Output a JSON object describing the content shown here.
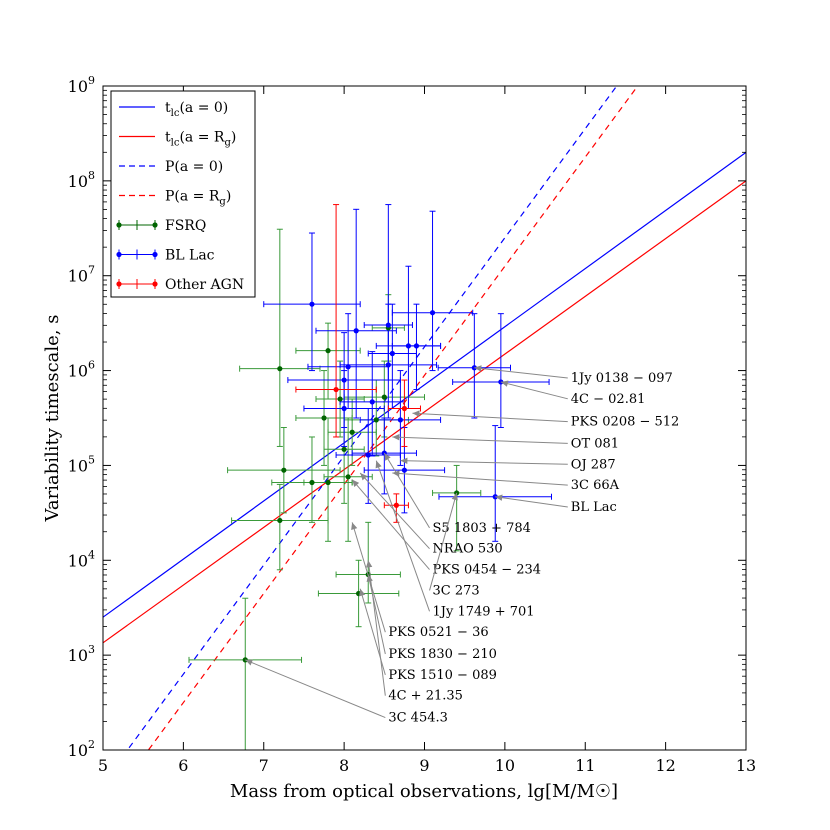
{
  "chart_data": {
    "type": "scatter",
    "title": "",
    "xlabel": "Mass from optical observations, lg[M/M☉]",
    "ylabel": "Variability timescale, s",
    "xlim": [
      5,
      13
    ],
    "ylim_log10": [
      2,
      9
    ],
    "yscale": "log",
    "grid": false,
    "legend_position": "top-left",
    "x_ticks": [
      "5",
      "6",
      "7",
      "8",
      "9",
      "10",
      "11",
      "12",
      "13"
    ],
    "y_ticks": [
      {
        "base": "10",
        "exp": "2"
      },
      {
        "base": "10",
        "exp": "3"
      },
      {
        "base": "10",
        "exp": "4"
      },
      {
        "base": "10",
        "exp": "5"
      },
      {
        "base": "10",
        "exp": "6"
      },
      {
        "base": "10",
        "exp": "7"
      },
      {
        "base": "10",
        "exp": "8"
      },
      {
        "base": "10",
        "exp": "9"
      }
    ],
    "lines": [
      {
        "name": "t_lc(a = 0)",
        "color": "#0000ff",
        "style": "solid",
        "p1": [
          5,
          3.4
        ],
        "p2": [
          13,
          8.3
        ]
      },
      {
        "name": "t_lc(a = R_g)",
        "color": "#ff0000",
        "style": "solid",
        "p1": [
          5,
          3.13
        ],
        "p2": [
          13,
          8.0
        ]
      },
      {
        "name": "P(a = 0)",
        "color": "#0000ff",
        "style": "dashed",
        "p1": [
          5,
          1.65
        ],
        "p2": [
          13,
          10.85
        ]
      },
      {
        "name": "P(a = R_g)",
        "color": "#ff0000",
        "style": "dashed",
        "p1": [
          5,
          1.35
        ],
        "p2": [
          13,
          10.55
        ]
      }
    ],
    "legend": [
      {
        "main": "t",
        "sub": "lc",
        "rest": "(a = 0)",
        "kind": "line",
        "color": "#0000ff",
        "dash": false
      },
      {
        "main": "t",
        "sub": "lc",
        "rest": "(a = R",
        "sub2": "g",
        "tail": ")",
        "kind": "line",
        "color": "#ff0000",
        "dash": false
      },
      {
        "main": "P(a = 0)",
        "kind": "line",
        "color": "#0000ff",
        "dash": true
      },
      {
        "main": "P(a = R",
        "sub2": "g",
        "tail": ")",
        "kind": "line",
        "color": "#ff0000",
        "dash": true
      },
      {
        "main": "FSRQ",
        "kind": "errbar",
        "color": "#006400"
      },
      {
        "main": "BL Lac",
        "kind": "errbar",
        "color": "#0000ff"
      },
      {
        "main": "Other AGN",
        "kind": "errbar",
        "color": "#ff0000"
      }
    ],
    "series": [
      {
        "name": "FSRQ",
        "color": "#006400",
        "errbar_color": "#3a9a3a",
        "points": [
          {
            "x": 6.77,
            "xerr": 0.7,
            "y": 2.95,
            "ylo": 2.0,
            "yhi": 3.6
          },
          {
            "x": 8.18,
            "xerr": 0.5,
            "y": 3.65,
            "ylo": 3.3,
            "yhi": 4.0
          },
          {
            "x": 8.3,
            "xerr": 0.4,
            "y": 3.85,
            "ylo": 3.55,
            "yhi": 4.4
          },
          {
            "x": 9.4,
            "xerr": 0.3,
            "y": 4.71,
            "ylo": 4.1,
            "yhi": 5.0
          },
          {
            "x": 7.2,
            "xerr": 0.6,
            "y": 4.42,
            "ylo": 3.9,
            "yhi": 4.8
          },
          {
            "x": 7.25,
            "xerr": 0.7,
            "y": 4.95,
            "ylo": 4.5,
            "yhi": 5.4
          },
          {
            "x": 7.6,
            "xerr": 0.5,
            "y": 4.82,
            "ylo": 4.4,
            "yhi": 5.3
          },
          {
            "x": 7.8,
            "xerr": 0.3,
            "y": 4.82,
            "ylo": 4.2,
            "yhi": 5.5
          },
          {
            "x": 8.05,
            "xerr": 0.3,
            "y": 4.88,
            "ylo": 4.2,
            "yhi": 5.5
          },
          {
            "x": 7.2,
            "xerr": 0.5,
            "y": 6.02,
            "ylo": 5.2,
            "yhi": 7.49
          },
          {
            "x": 7.8,
            "xerr": 0.4,
            "y": 6.21,
            "ylo": 5.7,
            "yhi": 6.5
          },
          {
            "x": 7.75,
            "xerr": 0.35,
            "y": 5.5,
            "ylo": 5.0,
            "yhi": 6.0
          },
          {
            "x": 8.1,
            "xerr": 0.3,
            "y": 5.35,
            "ylo": 5.0,
            "yhi": 5.7
          },
          {
            "x": 8.5,
            "xerr": 0.5,
            "y": 5.72,
            "ylo": 5.3,
            "yhi": 6.1
          },
          {
            "x": 8.0,
            "xerr": 0.25,
            "y": 5.17,
            "ylo": 4.6,
            "yhi": 5.6
          },
          {
            "x": 8.4,
            "xerr": 0.4,
            "y": 5.48,
            "ylo": 5.1,
            "yhi": 5.9
          },
          {
            "x": 8.55,
            "xerr": 0.2,
            "y": 6.45,
            "ylo": 6.1,
            "yhi": 6.8
          },
          {
            "x": 7.95,
            "xerr": 0.3,
            "y": 5.7,
            "ylo": 5.3,
            "yhi": 6.1
          }
        ]
      },
      {
        "name": "BL Lac",
        "color": "#0000ff",
        "errbar_color": "#0000ff",
        "points": [
          {
            "x": 7.6,
            "xerr": 0.6,
            "y": 6.7,
            "ylo": 6.0,
            "yhi": 7.45
          },
          {
            "x": 8.15,
            "xerr": 0.5,
            "y": 6.42,
            "ylo": 5.5,
            "yhi": 7.7
          },
          {
            "x": 8.55,
            "xerr": 0.3,
            "y": 6.48,
            "ylo": 5.9,
            "yhi": 7.75
          },
          {
            "x": 9.1,
            "xerr": 0.5,
            "y": 6.61,
            "ylo": 6.0,
            "yhi": 7.68
          },
          {
            "x": 8.8,
            "xerr": 0.4,
            "y": 6.26,
            "ylo": 5.6,
            "yhi": 7.1
          },
          {
            "x": 8.9,
            "xerr": 0.3,
            "y": 6.26,
            "ylo": 5.8,
            "yhi": 6.7
          },
          {
            "x": 8.6,
            "xerr": 0.3,
            "y": 6.18,
            "ylo": 5.6,
            "yhi": 6.7
          },
          {
            "x": 8.05,
            "xerr": 0.5,
            "y": 6.04,
            "ylo": 5.6,
            "yhi": 6.6
          },
          {
            "x": 8.55,
            "xerr": 0.6,
            "y": 6.06,
            "ylo": 5.5,
            "yhi": 6.7
          },
          {
            "x": 9.62,
            "xerr": 0.45,
            "y": 6.03,
            "ylo": 5.5,
            "yhi": 6.6
          },
          {
            "x": 9.95,
            "xerr": 0.6,
            "y": 5.88,
            "ylo": 5.4,
            "yhi": 6.6
          },
          {
            "x": 8.0,
            "xerr": 0.7,
            "y": 5.9,
            "ylo": 5.4,
            "yhi": 6.4
          },
          {
            "x": 8.35,
            "xerr": 0.4,
            "y": 5.67,
            "ylo": 5.1,
            "yhi": 6.2
          },
          {
            "x": 8.7,
            "xerr": 0.5,
            "y": 5.48,
            "ylo": 5.0,
            "yhi": 6.0
          },
          {
            "x": 8.3,
            "xerr": 0.4,
            "y": 5.11,
            "ylo": 4.6,
            "yhi": 5.6
          },
          {
            "x": 8.5,
            "xerr": 0.4,
            "y": 5.13,
            "ylo": 4.7,
            "yhi": 5.5
          },
          {
            "x": 8.75,
            "xerr": 0.5,
            "y": 4.95,
            "ylo": 4.5,
            "yhi": 5.4
          },
          {
            "x": 9.88,
            "xerr": 0.7,
            "y": 4.67,
            "ylo": 4.2,
            "yhi": 5.42
          },
          {
            "x": 8.0,
            "xerr": 0.5,
            "y": 5.6,
            "ylo": 5.2,
            "yhi": 6.0
          }
        ]
      },
      {
        "name": "Other AGN",
        "color": "#ff0000",
        "errbar_color": "#ff0000",
        "points": [
          {
            "x": 8.65,
            "xerr": 0.15,
            "y": 4.58,
            "ylo": 4.4,
            "yhi": 4.7
          },
          {
            "x": 8.75,
            "xerr": 0.2,
            "y": 5.6,
            "ylo": 5.2,
            "yhi": 5.9
          },
          {
            "x": 7.9,
            "xerr": 0.5,
            "y": 5.8,
            "ylo": 5.3,
            "yhi": 7.75
          }
        ]
      }
    ],
    "annotations": [
      {
        "text": "1Jy 0138 − 097",
        "tx": 10.82,
        "ty": 5.88,
        "px": 9.62,
        "py": 6.03
      },
      {
        "text": "4C  − 02.81",
        "tx": 10.82,
        "ty": 5.66,
        "px": 9.95,
        "py": 5.88
      },
      {
        "text": "PKS 0208 − 512",
        "tx": 10.82,
        "ty": 5.42,
        "px": 8.85,
        "py": 5.55
      },
      {
        "text": "OT 081",
        "tx": 10.82,
        "ty": 5.19,
        "px": 8.6,
        "py": 5.3
      },
      {
        "text": "OJ 287",
        "tx": 10.82,
        "ty": 4.97,
        "px": 8.7,
        "py": 5.05
      },
      {
        "text": "3C 66A",
        "tx": 10.82,
        "ty": 4.75,
        "px": 8.6,
        "py": 4.92
      },
      {
        "text": "BL Lac",
        "tx": 10.82,
        "ty": 4.52,
        "px": 9.88,
        "py": 4.67
      },
      {
        "text": "S5 1803 + 784",
        "tx": 9.1,
        "ty": 4.3,
        "px": 8.5,
        "py": 5.13
      },
      {
        "text": "NRAO 530",
        "tx": 9.1,
        "ty": 4.08,
        "px": 8.2,
        "py": 4.92
      },
      {
        "text": "PKS 0454 − 234",
        "tx": 9.1,
        "ty": 3.86,
        "px": 8.1,
        "py": 4.85
      },
      {
        "text": "3C 273",
        "tx": 9.1,
        "ty": 3.64,
        "px": 9.4,
        "py": 4.71
      },
      {
        "text": "1Jy 1749 + 701",
        "tx": 9.1,
        "ty": 3.42,
        "px": 8.4,
        "py": 5.05
      },
      {
        "text": "PKS 0521 − 36",
        "tx": 8.55,
        "ty": 3.2,
        "px": 8.1,
        "py": 4.4
      },
      {
        "text": "PKS 1830 − 210",
        "tx": 8.55,
        "ty": 2.97,
        "px": 8.3,
        "py": 3.85
      },
      {
        "text": "PKS 1510 − 089",
        "tx": 8.55,
        "ty": 2.75,
        "px": 8.2,
        "py": 3.7
      },
      {
        "text": "4C  + 21.35",
        "tx": 8.55,
        "ty": 2.53,
        "px": 8.3,
        "py": 4.0
      },
      {
        "text": "3C 454.3",
        "tx": 8.55,
        "ty": 2.3,
        "px": 6.77,
        "py": 2.95
      }
    ]
  }
}
